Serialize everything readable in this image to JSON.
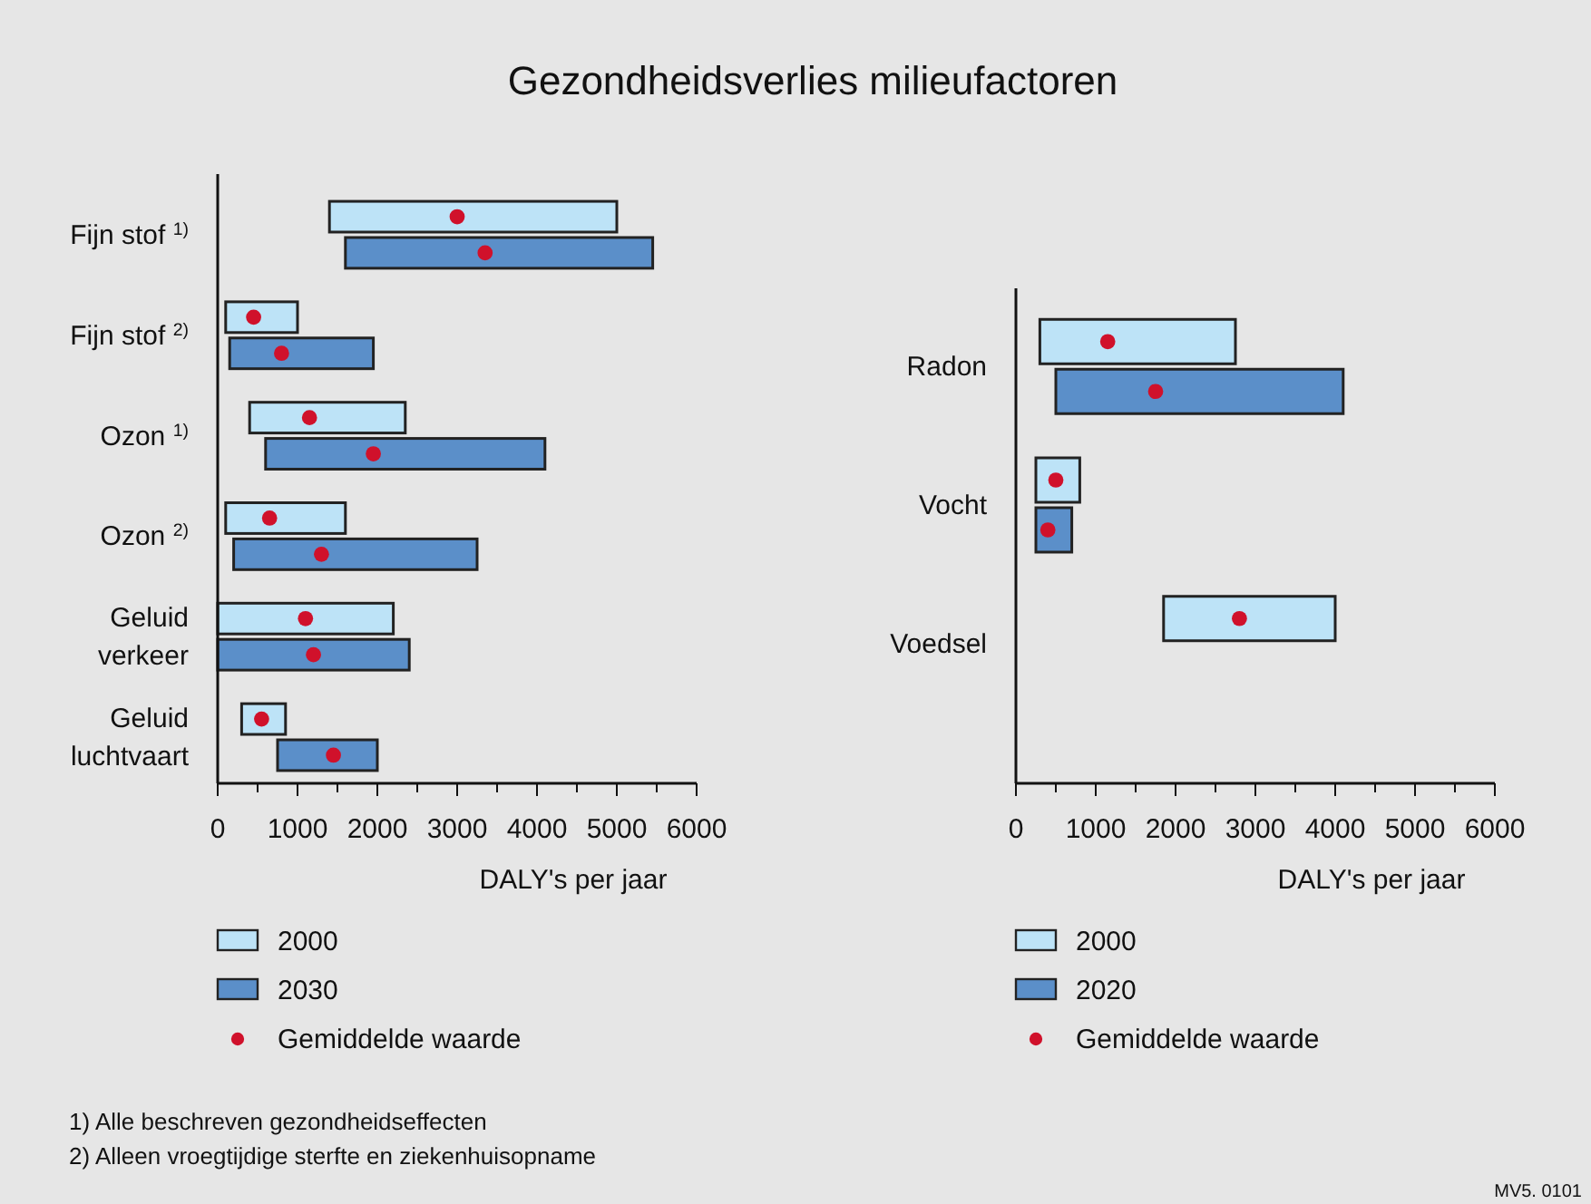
{
  "chart_data": [
    {
      "type": "bar",
      "orientation": "horizontal",
      "title": "Gezondheidsverlies milieufactoren",
      "xlabel": "DALY's per jaar",
      "categories": [
        "Fijn stof $^{1)}$",
        "Fijn stof $^{2)}$",
        "Ozon $^{1)}$",
        "Ozon $^{2)}$",
        "Geluid verkeer",
        "Geluid luchtvaart"
      ],
      "series": [
        {
          "name": "2000",
          "color": "#bde3f7",
          "base": [
            1400,
            100,
            400,
            100,
            0,
            300
          ],
          "values": [
            3600,
            900,
            1950,
            1500,
            2200,
            550
          ]
        },
        {
          "name": "2030",
          "color": "#5b8fc9",
          "base": [
            1600,
            150,
            600,
            200,
            0,
            750
          ],
          "values": [
            3850,
            1800,
            3500,
            3050,
            2400,
            1250
          ]
        },
        {
          "type": "scatter",
          "name": "Gemiddelde waarde",
          "color": "#d0112b",
          "values": [
            3000,
            450,
            1150,
            650,
            1100,
            550
          ]
        },
        {
          "type": "scatter",
          "color": "#d0112b",
          "values": [
            3350,
            800,
            1950,
            1300,
            1200,
            1450
          ]
        }
      ],
      "xlim": [
        0,
        6000
      ],
      "xticks": [
        0,
        {
          "value": 500,
          "label": null
        },
        1000,
        {
          "value": 1500,
          "label": null
        },
        2000,
        {
          "value": 2500,
          "label": null
        },
        3000,
        {
          "value": 3500,
          "label": null
        },
        4000,
        {
          "value": 4500,
          "label": null
        },
        5000,
        {
          "value": 5500,
          "label": null
        },
        6000
      ],
      "legend": "bottom left",
      "marker": "circle",
      "annotations": [
        "1) Alle beschreven gezondheidseffecten",
        "2) Alleen vroegtijdige sterfte en ziekenhuisopname"
      ]
    },
    {
      "type": "bar",
      "orientation": "horizontal",
      "xlabel": "DALY's per jaar",
      "categories": [
        "Radon",
        "Vocht",
        "Voedsel"
      ],
      "series": [
        {
          "name": "2000",
          "color": "#bde3f7",
          "base": [
            300,
            250,
            1850
          ],
          "values": [
            2450,
            550,
            2150
          ]
        },
        {
          "name": "2020",
          "color": "#5b8fc9",
          "base": [
            500,
            250,
            null
          ],
          "values": [
            3600,
            450,
            null
          ]
        },
        {
          "type": "scatter",
          "name": "Gemiddelde waarde",
          "color": "#d0112b",
          "values": [
            1150,
            500,
            2800
          ]
        },
        {
          "type": "scatter",
          "color": "#d0112b",
          "values": [
            1750,
            400,
            null
          ]
        }
      ],
      "xlim": [
        0,
        6000
      ],
      "xticks": [
        0,
        {
          "value": 500,
          "label": null
        },
        1000,
        {
          "value": 1500,
          "label": null
        },
        2000,
        {
          "value": 2500,
          "label": null
        },
        3000,
        {
          "value": 3500,
          "label": null
        },
        4000,
        {
          "value": 4500,
          "label": null
        },
        5000,
        {
          "value": 5500,
          "label": null
        },
        6000
      ],
      "legend": "bottom left",
      "marker": "circle",
      "annotations": [
        "MV5. 0101"
      ]
    }
  ]
}
